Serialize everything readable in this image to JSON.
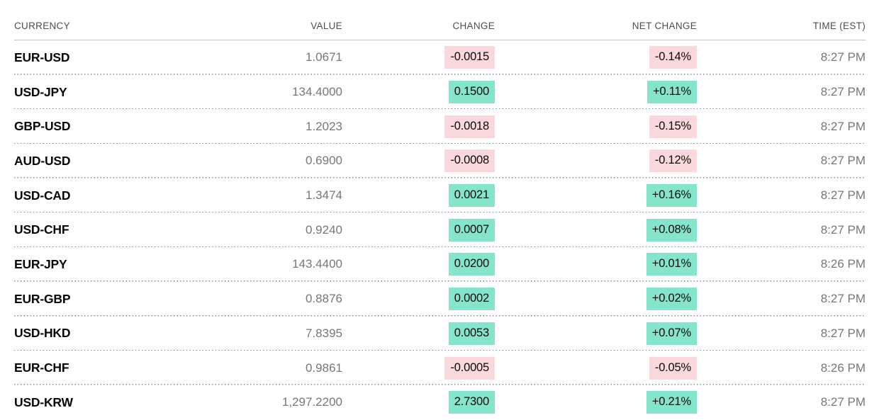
{
  "table": {
    "columns": [
      {
        "key": "currency",
        "label": "CURRENCY"
      },
      {
        "key": "value",
        "label": "VALUE"
      },
      {
        "key": "change",
        "label": "CHANGE"
      },
      {
        "key": "net_change",
        "label": "NET CHANGE"
      },
      {
        "key": "time",
        "label": "TIME (EST)"
      }
    ],
    "rows": [
      {
        "currency": "EUR-USD",
        "value": "1.0671",
        "change": "-0.0015",
        "net_change": "-0.14%",
        "time": "8:27 PM",
        "direction": "down"
      },
      {
        "currency": "USD-JPY",
        "value": "134.4000",
        "change": "0.1500",
        "net_change": "+0.11%",
        "time": "8:27 PM",
        "direction": "up"
      },
      {
        "currency": "GBP-USD",
        "value": "1.2023",
        "change": "-0.0018",
        "net_change": "-0.15%",
        "time": "8:27 PM",
        "direction": "down"
      },
      {
        "currency": "AUD-USD",
        "value": "0.6900",
        "change": "-0.0008",
        "net_change": "-0.12%",
        "time": "8:27 PM",
        "direction": "down"
      },
      {
        "currency": "USD-CAD",
        "value": "1.3474",
        "change": "0.0021",
        "net_change": "+0.16%",
        "time": "8:27 PM",
        "direction": "up"
      },
      {
        "currency": "USD-CHF",
        "value": "0.9240",
        "change": "0.0007",
        "net_change": "+0.08%",
        "time": "8:27 PM",
        "direction": "up"
      },
      {
        "currency": "EUR-JPY",
        "value": "143.4400",
        "change": "0.0200",
        "net_change": "+0.01%",
        "time": "8:26 PM",
        "direction": "up"
      },
      {
        "currency": "EUR-GBP",
        "value": "0.8876",
        "change": "0.0002",
        "net_change": "+0.02%",
        "time": "8:27 PM",
        "direction": "up"
      },
      {
        "currency": "USD-HKD",
        "value": "7.8395",
        "change": "0.0053",
        "net_change": "+0.07%",
        "time": "8:27 PM",
        "direction": "up"
      },
      {
        "currency": "EUR-CHF",
        "value": "0.9861",
        "change": "-0.0005",
        "net_change": "-0.05%",
        "time": "8:26 PM",
        "direction": "down"
      },
      {
        "currency": "USD-KRW",
        "value": "1,297.2200",
        "change": "2.7300",
        "net_change": "+0.21%",
        "time": "8:27 PM",
        "direction": "up"
      }
    ],
    "colors": {
      "positive_bg": "#84e5ca",
      "negative_bg": "#fad8db"
    }
  }
}
